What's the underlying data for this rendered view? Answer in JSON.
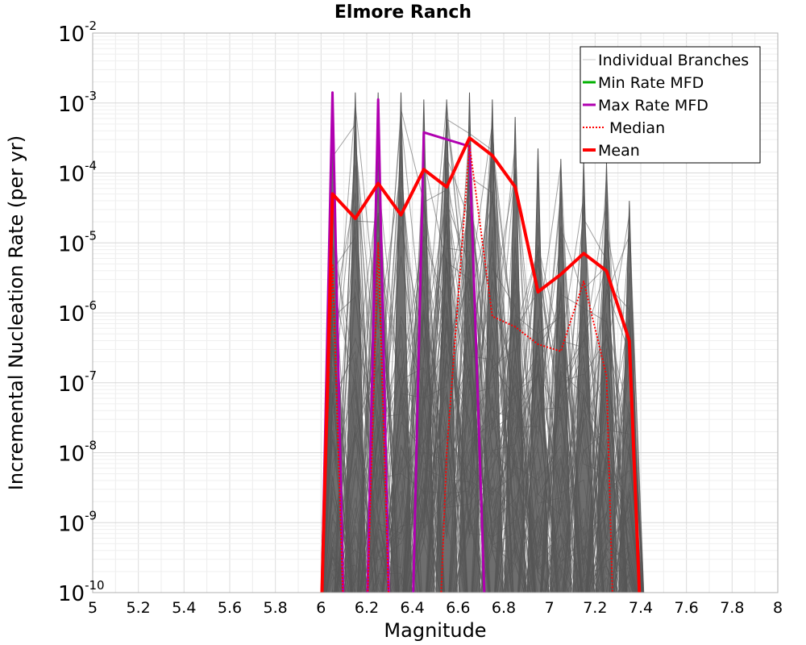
{
  "chart_data": {
    "type": "line",
    "title": "Elmore Ranch",
    "xlabel": "Magnitude",
    "ylabel": "Incremental Nucleation Rate (per yr)",
    "xlim": [
      5,
      8
    ],
    "ylim_log10": [
      -10,
      -2
    ],
    "y_scale": "log",
    "x_ticks": [
      "5",
      "5.2",
      "5.4",
      "5.6",
      "5.8",
      "6",
      "6.2",
      "6.4",
      "6.6",
      "6.8",
      "7",
      "7.2",
      "7.4",
      "7.6",
      "7.8",
      "8"
    ],
    "y_ticks": [
      {
        "base": "10",
        "exp": "-2"
      },
      {
        "base": "10",
        "exp": "-3"
      },
      {
        "base": "10",
        "exp": "-4"
      },
      {
        "base": "10",
        "exp": "-5"
      },
      {
        "base": "10",
        "exp": "-6"
      },
      {
        "base": "10",
        "exp": "-7"
      },
      {
        "base": "10",
        "exp": "-8"
      },
      {
        "base": "10",
        "exp": "-9"
      },
      {
        "base": "10",
        "exp": "-10"
      }
    ],
    "grid": true,
    "legend_position": "top-right",
    "legend": [
      {
        "label": "Individual Branches",
        "color": "#c8c8c8",
        "style": "thin"
      },
      {
        "label": "Min Rate MFD",
        "color": "#00b000",
        "style": "solid"
      },
      {
        "label": "Max Rate MFD",
        "color": "#b000b0",
        "style": "solid"
      },
      {
        "label": "Median",
        "color": "#ff0000",
        "style": "dotted"
      },
      {
        "label": "Mean",
        "color": "#ff0000",
        "style": "thick"
      }
    ],
    "branch_color": "#555555",
    "branch_peaks": [
      {
        "m": 6.05,
        "log_rate": -2.85
      },
      {
        "m": 6.15,
        "log_rate": -2.85
      },
      {
        "m": 6.25,
        "log_rate": -2.85
      },
      {
        "m": 6.35,
        "log_rate": -2.85
      },
      {
        "m": 6.45,
        "log_rate": -2.95
      },
      {
        "m": 6.55,
        "log_rate": -2.95
      },
      {
        "m": 6.65,
        "log_rate": -2.85
      },
      {
        "m": 6.75,
        "log_rate": -2.95
      },
      {
        "m": 6.85,
        "log_rate": -3.2
      },
      {
        "m": 6.95,
        "log_rate": -3.65
      },
      {
        "m": 7.05,
        "log_rate": -3.8
      },
      {
        "m": 7.15,
        "log_rate": -3.8
      },
      {
        "m": 7.25,
        "log_rate": -3.85
      },
      {
        "m": 7.35,
        "log_rate": -4.4
      }
    ],
    "series": [
      {
        "name": "Max Rate MFD",
        "color": "#b000b0",
        "points": [
          {
            "m": 6.0,
            "log_rate": -10.5
          },
          {
            "m": 6.05,
            "log_rate": -2.85
          },
          {
            "m": 6.1,
            "log_rate": -10.5
          },
          {
            "m": 6.2,
            "log_rate": -10.5
          },
          {
            "m": 6.25,
            "log_rate": -2.95
          },
          {
            "m": 6.3,
            "log_rate": -10.5
          },
          {
            "m": 6.4,
            "log_rate": -10.5
          },
          {
            "m": 6.45,
            "log_rate": -3.42
          },
          {
            "m": 6.65,
            "log_rate": -3.62
          },
          {
            "m": 6.72,
            "log_rate": -10.5
          }
        ]
      },
      {
        "name": "Median",
        "color": "#ff0000",
        "points": [
          {
            "m": 6.0,
            "log_rate": -10.5
          },
          {
            "m": 6.05,
            "log_rate": -5.3
          },
          {
            "m": 6.1,
            "log_rate": -10.5
          },
          {
            "m": 6.2,
            "log_rate": -10.5
          },
          {
            "m": 6.25,
            "log_rate": -5.0
          },
          {
            "m": 6.3,
            "log_rate": -10.5
          },
          {
            "m": 6.52,
            "log_rate": -10.5
          },
          {
            "m": 6.55,
            "log_rate": -8.0
          },
          {
            "m": 6.65,
            "log_rate": -3.6
          },
          {
            "m": 6.75,
            "log_rate": -6.05
          },
          {
            "m": 6.85,
            "log_rate": -6.2
          },
          {
            "m": 6.95,
            "log_rate": -6.45
          },
          {
            "m": 7.05,
            "log_rate": -6.55
          },
          {
            "m": 7.15,
            "log_rate": -5.55
          },
          {
            "m": 7.25,
            "log_rate": -6.9
          },
          {
            "m": 7.28,
            "log_rate": -10.5
          }
        ]
      },
      {
        "name": "Mean",
        "color": "#ff0000",
        "points": [
          {
            "m": 6.0,
            "log_rate": -10.5
          },
          {
            "m": 6.05,
            "log_rate": -4.3
          },
          {
            "m": 6.15,
            "log_rate": -4.65
          },
          {
            "m": 6.25,
            "log_rate": -4.15
          },
          {
            "m": 6.35,
            "log_rate": -4.6
          },
          {
            "m": 6.45,
            "log_rate": -3.95
          },
          {
            "m": 6.55,
            "log_rate": -4.2
          },
          {
            "m": 6.65,
            "log_rate": -3.5
          },
          {
            "m": 6.75,
            "log_rate": -3.75
          },
          {
            "m": 6.85,
            "log_rate": -4.2
          },
          {
            "m": 6.95,
            "log_rate": -5.7
          },
          {
            "m": 7.05,
            "log_rate": -5.45
          },
          {
            "m": 7.15,
            "log_rate": -5.15
          },
          {
            "m": 7.25,
            "log_rate": -5.4
          },
          {
            "m": 7.35,
            "log_rate": -6.4
          },
          {
            "m": 7.4,
            "log_rate": -10.5
          }
        ]
      }
    ]
  }
}
